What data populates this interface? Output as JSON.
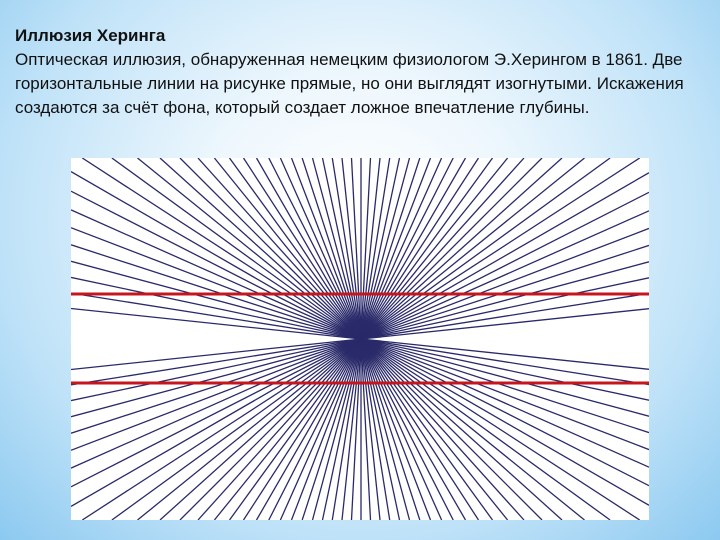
{
  "slide": {
    "title": "Иллюзия Херинга",
    "description": "Оптическая иллюзия, обнаруженная немецким физиологом Э.Херингом в 1861. Две горизонтальные линии на рисунке прямые, но они выглядят изогнутыми. Искажения создаются за счёт фона, который создает ложное впечатление глубины."
  },
  "illusion": {
    "ray_color": "#2a2a6a",
    "line_color": "#c4161c",
    "background_color": "#ffffff"
  }
}
